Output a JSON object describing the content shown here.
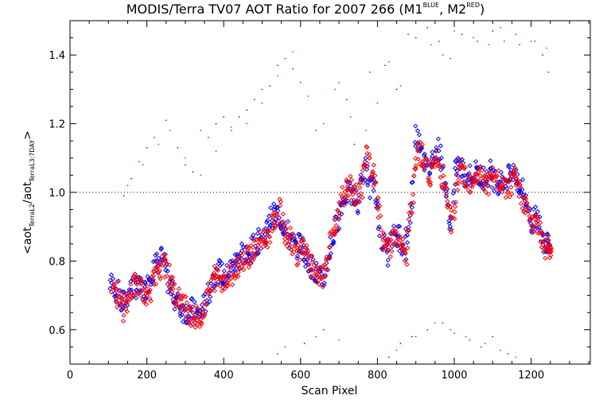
{
  "chart_data": {
    "type": "scatter",
    "title": {
      "main": "MODIS/Terra TV07 AOT Ratio for 2007 266 (M1",
      "sup1": "BLUE",
      "mid": ", M2",
      "sup2": "RED",
      "end": ")"
    },
    "xlabel": "Scan Pixel",
    "ylabel": {
      "prefix": "<aot",
      "sub1": "TerraL2",
      "mid": "/aot",
      "sub2": "TerraL3:7DAY",
      "suffix": ">"
    },
    "xlim": [
      0,
      1354
    ],
    "ylim": [
      0.5,
      1.5
    ],
    "xticks": [
      0,
      200,
      400,
      600,
      800,
      1000,
      1200
    ],
    "yticks": [
      0.6,
      0.8,
      1.0,
      1.2,
      1.4
    ],
    "ytick_labels": [
      "0.6",
      "0.8",
      "1.0",
      "1.2",
      "1.4"
    ],
    "reference_line": 1.0,
    "grid": false,
    "series": [
      {
        "color": "#0000ff",
        "marker": "diamond",
        "x": [
          105,
          120,
          135,
          150,
          165,
          180,
          195,
          210,
          225,
          240,
          255,
          270,
          285,
          300,
          315,
          330,
          345,
          360,
          375,
          390,
          405,
          420,
          435,
          450,
          465,
          480,
          495,
          510,
          525,
          540,
          555,
          570,
          585,
          600,
          615,
          630,
          645,
          660,
          675,
          690,
          705,
          720,
          735,
          750,
          765,
          780,
          795,
          810,
          825,
          840,
          855,
          870,
          885,
          900,
          915,
          930,
          945,
          960,
          975,
          990,
          1005,
          1020,
          1035,
          1050,
          1065,
          1080,
          1095,
          1110,
          1125,
          1140,
          1155,
          1170,
          1185,
          1200,
          1215,
          1230,
          1245
        ],
        "y": [
          0.74,
          0.72,
          0.67,
          0.7,
          0.73,
          0.72,
          0.71,
          0.76,
          0.79,
          0.81,
          0.74,
          0.7,
          0.67,
          0.65,
          0.66,
          0.64,
          0.66,
          0.7,
          0.76,
          0.77,
          0.75,
          0.78,
          0.8,
          0.83,
          0.8,
          0.85,
          0.86,
          0.89,
          0.93,
          0.94,
          0.91,
          0.87,
          0.84,
          0.85,
          0.81,
          0.78,
          0.76,
          0.74,
          0.83,
          0.89,
          0.96,
          1.0,
          0.99,
          0.97,
          1.08,
          1.02,
          1.0,
          0.87,
          0.82,
          0.87,
          0.88,
          0.82,
          0.93,
          1.17,
          1.14,
          1.06,
          1.11,
          1.13,
          1.02,
          0.9,
          1.08,
          1.07,
          1.04,
          1.06,
          1.05,
          1.04,
          1.06,
          1.03,
          1.03,
          1.04,
          1.06,
          1.02,
          0.98,
          0.91,
          0.93,
          0.86,
          0.86
        ]
      },
      {
        "color": "#ff0000",
        "marker": "diamond",
        "x": [
          110,
          125,
          140,
          155,
          170,
          185,
          200,
          215,
          230,
          245,
          260,
          275,
          290,
          305,
          320,
          335,
          350,
          365,
          380,
          395,
          410,
          425,
          440,
          455,
          470,
          485,
          500,
          515,
          530,
          545,
          560,
          575,
          590,
          605,
          620,
          635,
          650,
          665,
          680,
          695,
          710,
          725,
          740,
          755,
          770,
          785,
          800,
          815,
          830,
          845,
          860,
          875,
          890,
          905,
          920,
          935,
          950,
          965,
          980,
          995,
          1010,
          1025,
          1040,
          1055,
          1070,
          1085,
          1100,
          1115,
          1130,
          1145,
          1160,
          1175,
          1190,
          1205,
          1220,
          1235,
          1250
        ],
        "y": [
          0.74,
          0.69,
          0.66,
          0.7,
          0.74,
          0.73,
          0.7,
          0.73,
          0.77,
          0.79,
          0.75,
          0.7,
          0.68,
          0.66,
          0.64,
          0.63,
          0.66,
          0.72,
          0.76,
          0.75,
          0.74,
          0.77,
          0.8,
          0.81,
          0.82,
          0.84,
          0.86,
          0.87,
          0.91,
          0.95,
          0.88,
          0.86,
          0.82,
          0.84,
          0.8,
          0.77,
          0.74,
          0.78,
          0.86,
          0.91,
          0.99,
          1.02,
          1.0,
          0.98,
          1.12,
          1.06,
          1.0,
          0.85,
          0.83,
          0.88,
          0.85,
          0.8,
          0.97,
          1.14,
          1.1,
          1.04,
          1.09,
          1.07,
          1.0,
          0.88,
          1.06,
          1.06,
          1.03,
          1.05,
          1.05,
          1.02,
          1.04,
          1.03,
          1.01,
          1.02,
          1.04,
          0.99,
          0.95,
          0.9,
          0.91,
          0.84,
          0.84
        ]
      }
    ],
    "outliers": [
      {
        "color": "#0000ff",
        "x": [
          140,
          160,
          180,
          200,
          220,
          250,
          280,
          300,
          320,
          340,
          360,
          380,
          400,
          420,
          440,
          460,
          480,
          500,
          520,
          540,
          560,
          580,
          600,
          640,
          700,
          720,
          740,
          780,
          820,
          850,
          880,
          900,
          930,
          960,
          990,
          1020,
          1060,
          1100,
          1130,
          1170,
          1210,
          1230,
          1245
        ],
        "y": [
          0.99,
          1.04,
          1.09,
          1.13,
          1.16,
          1.21,
          1.13,
          1.08,
          1.06,
          1.18,
          1.16,
          1.2,
          1.22,
          1.18,
          1.22,
          1.24,
          1.27,
          1.3,
          1.31,
          1.37,
          1.39,
          1.36,
          1.32,
          1.18,
          1.32,
          1.27,
          1.14,
          1.35,
          1.37,
          1.3,
          1.46,
          1.45,
          1.48,
          1.44,
          1.39,
          1.46,
          1.44,
          1.47,
          1.44,
          1.43,
          1.44,
          1.4,
          1.35
        ]
      },
      {
        "color": "#ff0000",
        "x": [
          150,
          190,
          230,
          260,
          300,
          340,
          380,
          420,
          460,
          500,
          540,
          580,
          620,
          660,
          690,
          730,
          770,
          800,
          830,
          860,
          900,
          940,
          970,
          1000,
          1050,
          1090,
          1120,
          1160,
          1200,
          1240
        ],
        "y": [
          1.02,
          1.08,
          1.14,
          1.18,
          1.1,
          1.05,
          1.12,
          1.19,
          1.2,
          1.26,
          1.34,
          1.41,
          1.28,
          1.2,
          1.3,
          1.22,
          1.18,
          1.26,
          1.38,
          1.31,
          1.45,
          1.43,
          1.4,
          1.47,
          1.45,
          1.43,
          1.48,
          1.46,
          1.44,
          1.42
        ]
      },
      {
        "color": "#0000ff",
        "x": [
          540,
          610,
          660,
          830,
          860,
          890,
          930,
          970,
          1000,
          1040,
          1070,
          1100,
          1140
        ],
        "y": [
          0.53,
          0.56,
          0.6,
          0.52,
          0.56,
          0.58,
          0.6,
          0.62,
          0.59,
          0.57,
          0.55,
          0.58,
          0.53
        ]
      },
      {
        "color": "#ff0000",
        "x": [
          560,
          640,
          700,
          850,
          900,
          950,
          990,
          1030,
          1080,
          1120,
          1160
        ],
        "y": [
          0.55,
          0.58,
          0.57,
          0.54,
          0.58,
          0.62,
          0.6,
          0.58,
          0.56,
          0.54,
          0.52
        ]
      }
    ]
  }
}
